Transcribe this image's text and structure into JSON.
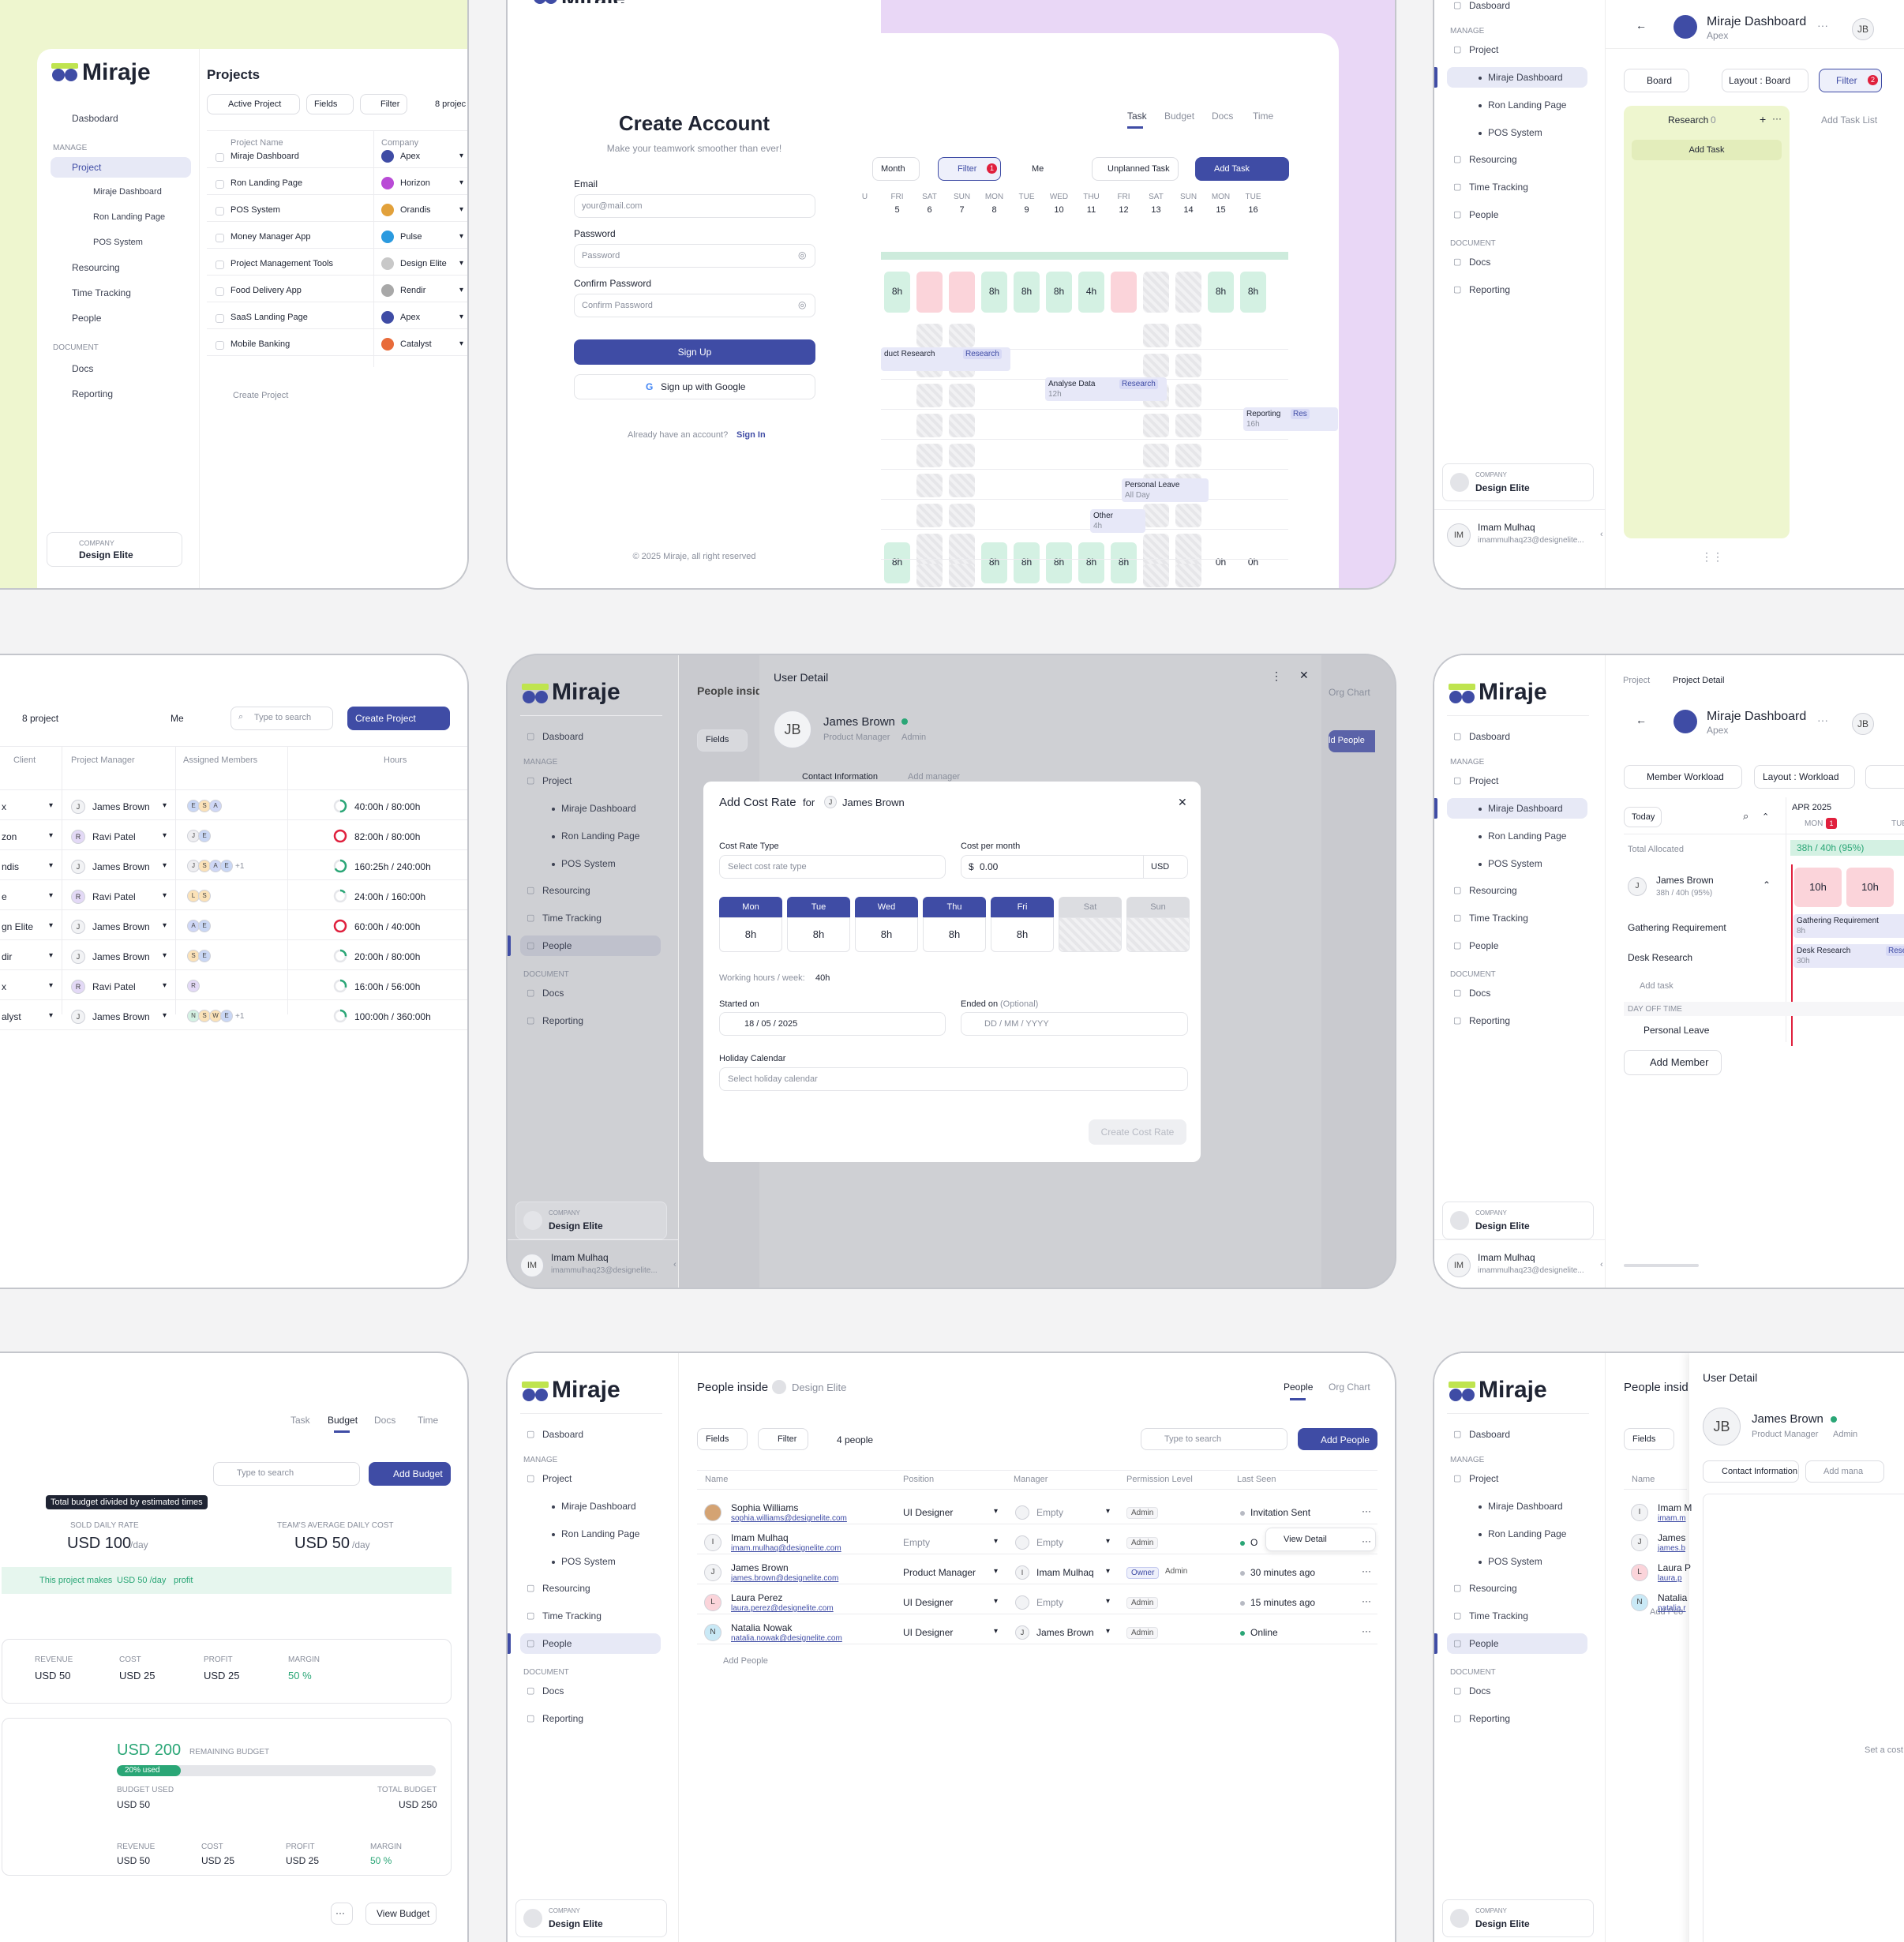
{
  "brand": {
    "name": "Miraje",
    "primary": "#3f4ca5",
    "accent": "#bfe44f",
    "green": "#2aa676"
  },
  "sidebar": {
    "dashboard": "Dasbodard",
    "dashboard2": "Dasboard",
    "manage": "MANAGE",
    "project": "Project",
    "sub": [
      "Miraje Dashboard",
      "Ron Landing Page",
      "POS System"
    ],
    "resourcing": "Resourcing",
    "time": "Time Tracking",
    "people": "People",
    "document": "DOCUMENT",
    "docs": "Docs",
    "reporting": "Reporting",
    "company_label": "COMPANY",
    "company": "Design Elite",
    "user": "Imam Mulhaq",
    "user_email": "imammulhaq23@designelite...",
    "user_initials": "IM"
  },
  "p1": {
    "title": "Projects",
    "active": "Active Project",
    "fields": "Fields",
    "filter": "Filter",
    "count": "8 projec",
    "col_name": "Project Name",
    "col_company": "Company",
    "rows": [
      [
        "Miraje Dashboard",
        "Apex"
      ],
      [
        "Ron Landing Page",
        "Horizon"
      ],
      [
        "POS System",
        "Orandis"
      ],
      [
        "Money Manager App",
        "Pulse"
      ],
      [
        "Project Management Tools",
        "Design Elite"
      ],
      [
        "Food Delivery App",
        "Rendir"
      ],
      [
        "SaaS Landing Page",
        "Apex"
      ],
      [
        "Mobile Banking",
        "Catalyst"
      ]
    ],
    "create": "Create Project"
  },
  "p2": {
    "title": "Create Account",
    "subtitle": "Make your teamwork smoother than ever!",
    "email": "Email",
    "email_ph": "your@mail.com",
    "password": "Password",
    "password_ph": "Password",
    "confirm": "Confirm Password",
    "confirm_ph": "Confirm Password",
    "signup": "Sign Up",
    "google": "Sign up with Google",
    "have": "Already have an account?",
    "signin": "Sign In",
    "copyright": "© 2025 Miraje, all right reserved",
    "tabs": [
      "Task",
      "Budget",
      "Docs",
      "Time"
    ],
    "month": "Month",
    "filter": "Filter",
    "filter_count": "1",
    "me": "Me",
    "unplanned": "Unplanned Task",
    "add_task": "Add Task",
    "days": [
      [
        "U",
        ""
      ],
      [
        "FRI",
        "5"
      ],
      [
        "SAT",
        "6"
      ],
      [
        "SUN",
        "7"
      ],
      [
        "MON",
        "8"
      ],
      [
        "TUE",
        "9"
      ],
      [
        "WED",
        "10"
      ],
      [
        "THU",
        "11"
      ],
      [
        "FRI",
        "12"
      ],
      [
        "SAT",
        "13"
      ],
      [
        "SUN",
        "14"
      ],
      [
        "MON",
        "15"
      ],
      [
        "TUE",
        "16"
      ]
    ],
    "row1": [
      "h",
      "8h",
      "",
      "",
      "8h",
      "8h",
      "8h",
      "4h",
      "",
      "",
      "",
      "8h",
      "8h"
    ],
    "bottom": [
      "h",
      "8h",
      "",
      "",
      "8h",
      "8h",
      "8h",
      "8h",
      "8h",
      "",
      "",
      "0h",
      "0h"
    ],
    "ev1": "duct Research",
    "ev1tag": "Research",
    "ev2": "Analyse Data",
    "ev2sub": "12h",
    "ev2tag": "Research",
    "ev3": "Reporting",
    "ev3sub": "16h",
    "ev3tag": "Res",
    "ev4": "Personal Leave",
    "ev4sub": "All Day",
    "ev5": "Other",
    "ev5sub": "4h"
  },
  "p3": {
    "project": "Miraje Dashboard",
    "client": "Apex",
    "initials": "JB",
    "board": "Board",
    "layout": "Layout : Board",
    "filter": "Filter",
    "filter_count": "2",
    "col": "Research",
    "col_count": "0",
    "add_task": "Add Task",
    "add_list": "Add Task List"
  },
  "p4": {
    "count": "8 project",
    "me": "Me",
    "search_ph": "Type to search",
    "create": "Create Project",
    "cols": [
      "Client",
      "Project Manager",
      "Assigned Members",
      "Hours"
    ],
    "rows": [
      [
        "x",
        "James Brown",
        "J",
        "ESA",
        "",
        "40:00h / 80:00h"
      ],
      [
        "zon",
        "Ravi Patel",
        "R",
        "JE",
        "",
        "82:00h / 80:00h"
      ],
      [
        "ndis",
        "James Brown",
        "J",
        "JSAE",
        "+1",
        "160:25h / 240:00h"
      ],
      [
        "e",
        "Ravi Patel",
        "R",
        "LS",
        "",
        "24:00h / 160:00h"
      ],
      [
        "gn Elite",
        "James Brown",
        "J",
        "AE",
        "",
        "60:00h / 40:00h"
      ],
      [
        "dir",
        "James Brown",
        "J",
        "SE",
        "",
        "20:00h / 80:00h"
      ],
      [
        "x",
        "Ravi Patel",
        "R",
        "R",
        "",
        "16:00h / 56:00h"
      ],
      [
        "alyst",
        "James Brown",
        "J",
        "NSWE",
        "+1",
        "100:00h / 360:00h"
      ]
    ],
    "ratios": [
      0.5,
      1,
      0.67,
      0.15,
      1,
      0.25,
      0.29,
      0.28
    ]
  },
  "p5": {
    "people_inside": "People insid",
    "panel_title": "User Detail",
    "name": "James Brown",
    "role": "Product Manager",
    "perm": "Admin",
    "contact": "Contact Information",
    "add_manager": "Add manager",
    "org": "Org Chart",
    "fields": "Fields",
    "add_people": "ld People",
    "modal": {
      "title": "Add Cost Rate",
      "for": "for",
      "who": "James Brown",
      "crt": "Cost Rate Type",
      "crt_ph": "Select cost rate type",
      "cpm": "Cost per month",
      "cost": "0.00",
      "currency": "USD",
      "days": [
        "Mon",
        "Tue",
        "Wed",
        "Thu",
        "Fri",
        "Sat",
        "Sun"
      ],
      "hours": [
        "8h",
        "8h",
        "8h",
        "8h",
        "8h",
        "",
        ""
      ],
      "whw": "Working hours / week:",
      "whw_val": "40h",
      "started": "Started on",
      "started_val": "18 / 05 / 2025",
      "ended": "Ended on",
      "ended_opt": "(Optional)",
      "ended_ph": "DD / MM / YYYY",
      "holiday": "Holiday Calendar",
      "holiday_ph": "Select holiday calendar",
      "create": "Create Cost Rate"
    }
  },
  "p6": {
    "crumb1": "Project",
    "crumb2": "Project Detail",
    "project": "Miraje Dashboard",
    "client": "Apex",
    "initials": "JB",
    "workload": "Member Workload",
    "layout": "Layout : Workload",
    "today": "Today",
    "month": "APR 2025",
    "mon": "MON",
    "mon_badge": "1",
    "tue": "TUE",
    "total": "Total Allocated",
    "total_val": "38h / 40h (95%)",
    "member": "James Brown",
    "member_sub": "38h / 40h (95%)",
    "h1": "10h",
    "h2": "10h",
    "task1": "Gathering Requirement",
    "task1_bar": "Gathering Requirement",
    "task1_sub": "8h",
    "task2": "Desk Research",
    "task2_bar": "Desk Research",
    "task2_sub": "30h",
    "task2_tag": "Research",
    "add_task": "Add task",
    "off": "DAY OFF TIME",
    "leave": "Personal Leave",
    "add_member": "Add Member"
  },
  "p7": {
    "tabs": [
      "Task",
      "Budget",
      "Docs",
      "Time"
    ],
    "search_ph": "Type to search",
    "add_budget": "Add Budget",
    "tooltip": "Total budget divided by estimated times",
    "sold": "SOLD DAILY RATE",
    "sold_val": "USD 100",
    "sold_unit": "/day",
    "avg": "TEAM'S AVERAGE DAILY COST",
    "avg_val": "USD 50",
    "avg_unit": "/day",
    "profit_note": "This project makes",
    "profit_val": "USD 50 /day",
    "profit_tail": "profit",
    "stats": [
      [
        "REVENUE",
        "USD 50"
      ],
      [
        "COST",
        "USD 25"
      ],
      [
        "PROFIT",
        "USD 25"
      ],
      [
        "MARGIN",
        "50 %"
      ]
    ],
    "remaining": "USD 200",
    "remaining_lbl": "REMAINING BUDGET",
    "used_pct": "20% used",
    "used_ratio": 0.2,
    "used_lbl": "BUDGET USED",
    "used_val": "USD 50",
    "total_lbl": "TOTAL BUDGET",
    "total_val": "USD 250",
    "view": "View Budget"
  },
  "p8": {
    "title": "People inside",
    "company": "Design Elite",
    "tab_people": "People",
    "tab_org": "Org Chart",
    "fields": "Fields",
    "filter": "Filter",
    "count": "4 people",
    "search_ph": "Type to search",
    "add": "Add People",
    "cols": [
      "Name",
      "Position",
      "Manager",
      "Permission Level",
      "Last Seen"
    ],
    "rows": [
      [
        "Sophia Williams",
        "sophia.williams@designelite.com",
        "UI Designer",
        "Empty",
        "Admin",
        "",
        "Invitation Sent"
      ],
      [
        "Imam Mulhaq",
        "imam.mulhaq@designelite.com",
        "Empty",
        "Empty",
        "Admin",
        "",
        "O"
      ],
      [
        "James Brown",
        "james.brown@designelite.com",
        "Product Manager",
        "Imam Mulhaq",
        "Owner",
        "Admin",
        "30 minutes ago"
      ],
      [
        "Laura Perez",
        "laura.perez@designelite.com",
        "UI Designer",
        "Empty",
        "Admin",
        "",
        "15 minutes ago"
      ],
      [
        "Natalia Nowak",
        "natalia.nowak@designelite.com",
        "UI Designer",
        "James Brown",
        "Admin",
        "",
        "Online"
      ]
    ],
    "view": "View Detail",
    "add_row": "Add People"
  },
  "p9": {
    "title": "People insid",
    "panel": "User Detail",
    "name": "James Brown",
    "role": "Product Manager",
    "perm": "Admin",
    "contact": "Contact Information",
    "add_manager": "Add mana",
    "fields": "Fields",
    "names": [
      "Imam M",
      "James",
      "Laura P",
      "Natalia"
    ],
    "emails": [
      "imam.m",
      "james.b",
      "laura.p",
      "natalia.r"
    ],
    "add": "Add Peo",
    "set": "Set a cost"
  }
}
